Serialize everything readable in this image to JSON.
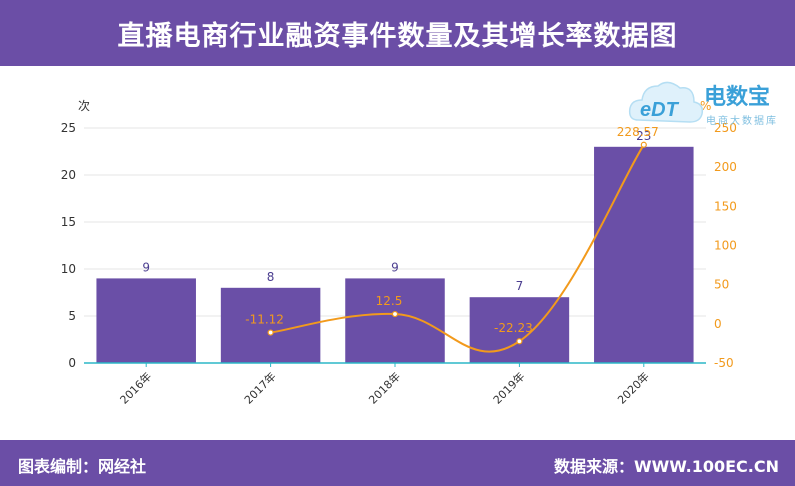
{
  "header": {
    "title": "直播电商行业融资事件数量及其增长率数据图"
  },
  "footer": {
    "left_text": "图表编制：网经社",
    "right_text": "数据来源：WWW.100EC.CN"
  },
  "logo": {
    "text": "电数宝",
    "sub_text": "电商大数据库",
    "badge": "eDT"
  },
  "colors": {
    "bar": "#6a4fa7",
    "line": "#f29a1c",
    "header_bg": "#6b4ea6",
    "axis": "#2bb7c7"
  },
  "chart_data": {
    "type": "bar",
    "categories": [
      "2016年",
      "2017年",
      "2018年",
      "2019年",
      "2020年"
    ],
    "series": [
      {
        "values": [
          9,
          8,
          9,
          7,
          23
        ]
      },
      {
        "type": "line",
        "axis": "right",
        "values": [
          null,
          -11.12,
          12.5,
          -22.23,
          228.57
        ]
      }
    ],
    "bar_labels": [
      "9",
      "8",
      "9",
      "7",
      "23"
    ],
    "line_labels": [
      "",
      "-11.12",
      "12.5",
      "-22.23",
      "228.57"
    ],
    "ylabel": "次",
    "ylabel_right": "%",
    "ylim": [
      0,
      25
    ],
    "yticks": [
      "0",
      "5",
      "10",
      "15",
      "20",
      "25"
    ],
    "ylim_right": [
      -50,
      250
    ],
    "yticks_right": [
      "-50",
      "0",
      "50",
      "100",
      "150",
      "200",
      "250"
    ],
    "grid": true
  }
}
